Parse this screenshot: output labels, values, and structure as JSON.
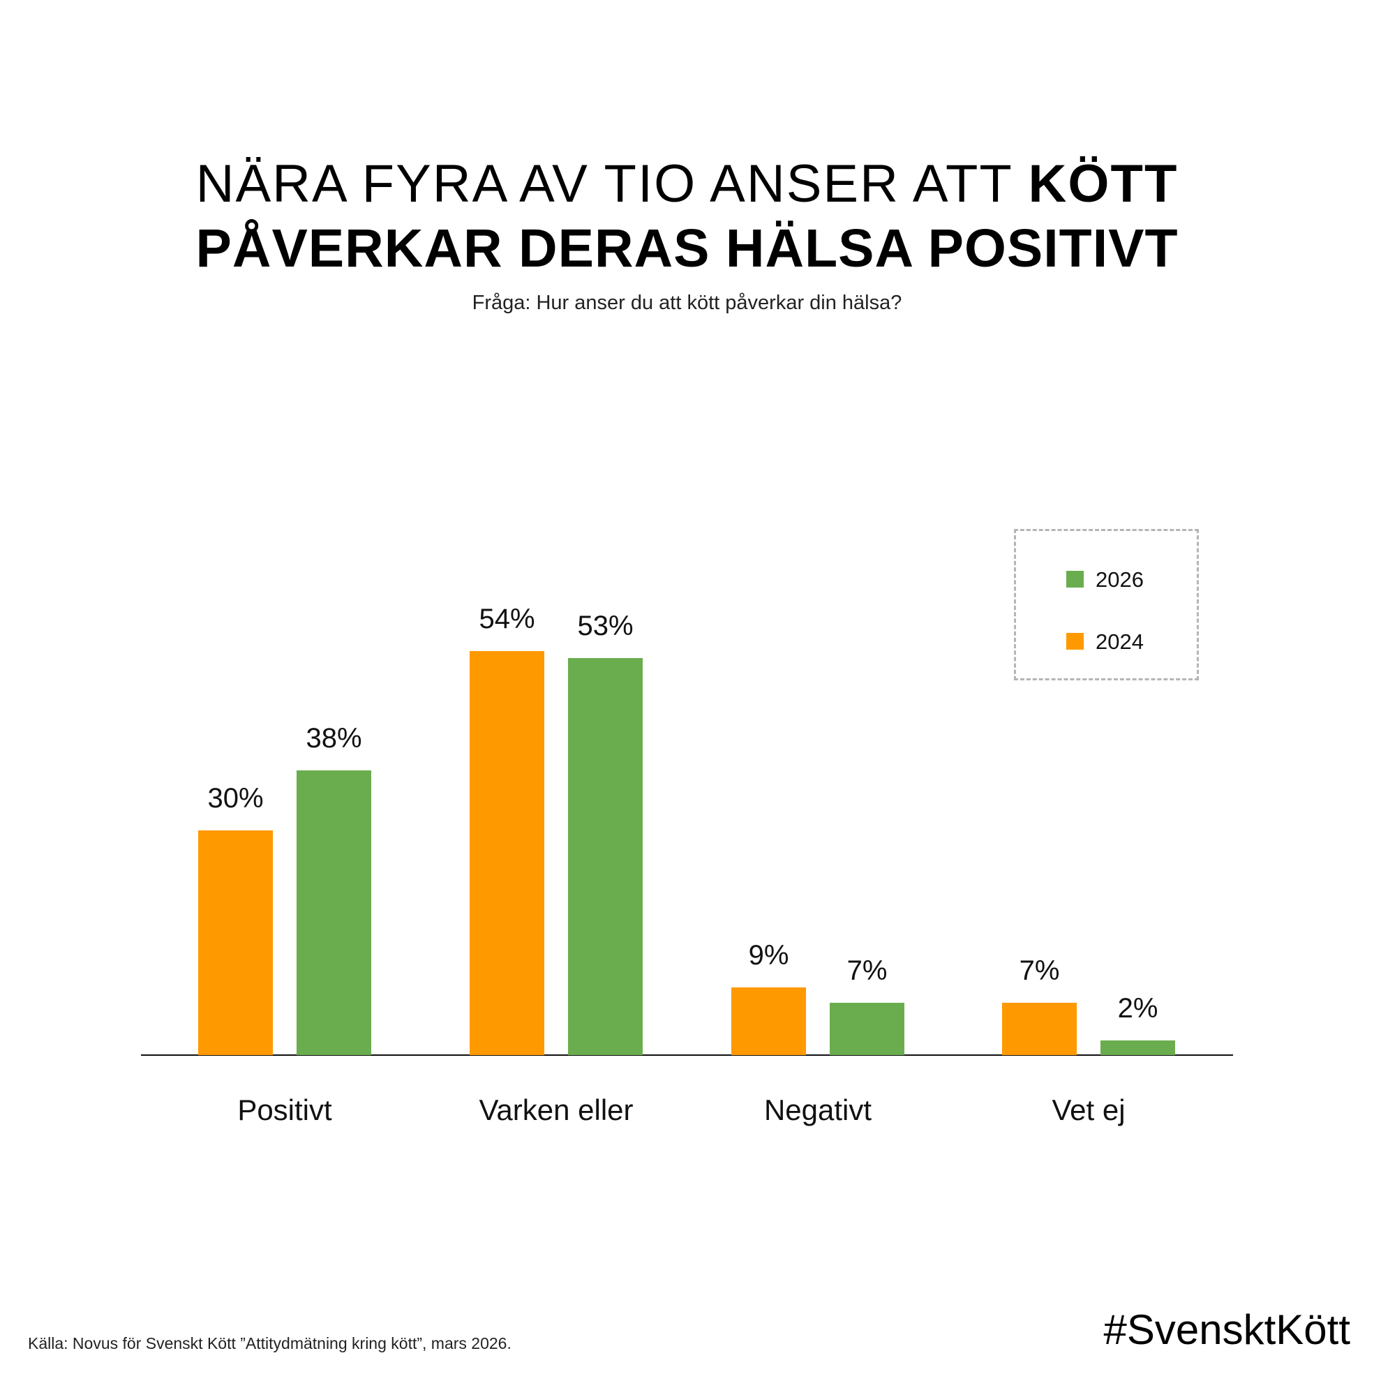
{
  "header": {
    "title_line1_light": "NÄRA FYRA AV TIO ANSER ATT ",
    "title_line1_bold": "KÖTT",
    "title_line2": "PÅVERKAR DERAS HÄLSA POSITIVT",
    "subtitle": "Fråga: Hur anser du att kött påverkar din hälsa?"
  },
  "colors": {
    "2024": "#FF9900",
    "2026": "#6AAD4E",
    "legend_border": "#B5B5B5"
  },
  "legend": {
    "items": [
      {
        "label": "2026",
        "color": "#6AAD4E"
      },
      {
        "label": "2024",
        "color": "#FF9900"
      }
    ]
  },
  "chart_data": {
    "type": "bar",
    "title": "NÄRA FYRA AV TIO ANSER ATT KÖTT PÅVERKAR DERAS HÄLSA POSITIVT",
    "subtitle": "Fråga: Hur anser du att kött påverkar din hälsa?",
    "categories": [
      "Positivt",
      "Varken eller",
      "Negativt",
      "Vet ej"
    ],
    "series": [
      {
        "name": "2024",
        "color": "#FF9900",
        "values": [
          30,
          54,
          9,
          7
        ],
        "labels": [
          "30%",
          "54%",
          "9%",
          "7%"
        ]
      },
      {
        "name": "2026",
        "color": "#6AAD4E",
        "values": [
          38,
          53,
          7,
          2
        ],
        "labels": [
          "38%",
          "53%",
          "7%",
          "2%"
        ]
      }
    ],
    "xlabel": "",
    "ylabel": "",
    "ylim": [
      0,
      60
    ],
    "grid": false,
    "y_axis_visible": false,
    "legend_position": "top-right",
    "value_format": "percent"
  },
  "footer": {
    "source": "Källa: Novus för Svenskt Kött ”Attitydmätning kring kött”, mars 2026.",
    "hashtag": "#SvensktKött"
  }
}
